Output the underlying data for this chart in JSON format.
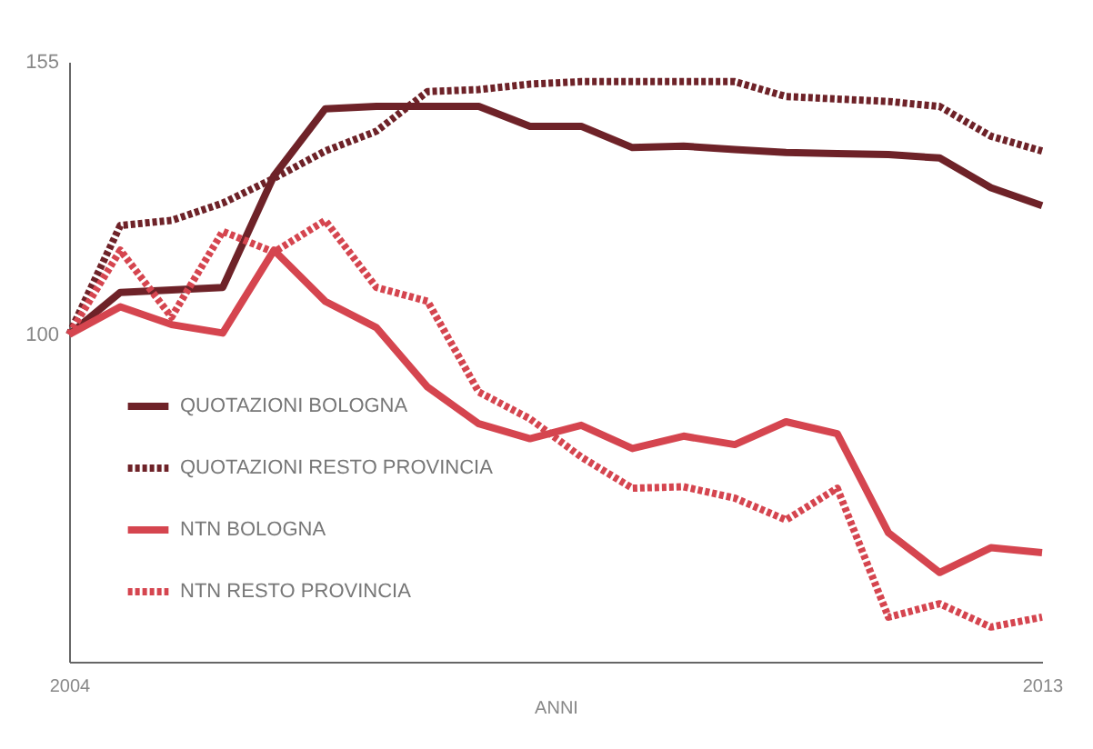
{
  "chart_data": {
    "type": "line",
    "xlabel": "ANNI",
    "categories": [
      "2004",
      null,
      null,
      null,
      null,
      null,
      null,
      null,
      null,
      null,
      null,
      null,
      null,
      null,
      null,
      null,
      null,
      null,
      null,
      "2013"
    ],
    "ylim": [
      34,
      155
    ],
    "yticks": [
      100,
      155
    ],
    "grid": false,
    "legend": "bottom left",
    "series": [
      {
        "name": "QUOTAZIONI BOLOGNA",
        "color": "#6e2228",
        "line_style": "solid",
        "values": [
          100,
          108.5,
          109,
          109.5,
          132,
          145.5,
          146,
          146,
          146,
          142,
          142,
          137.7,
          138,
          137.3,
          136.7,
          136.5,
          136.3,
          135.6,
          129.6,
          126
        ]
      },
      {
        "name": "QUOTAZIONI RESTO PROVINCIA",
        "color": "#6e2228",
        "line_style": "dotted",
        "values": [
          100,
          122,
          123,
          126.5,
          131.5,
          137,
          141,
          149,
          149.4,
          150.5,
          151,
          151,
          151,
          151,
          148,
          147.5,
          147,
          146,
          140,
          137
        ]
      },
      {
        "name": "NTN BOLOGNA",
        "color": "#d5454f",
        "line_style": "solid",
        "values": [
          100,
          105.6,
          102,
          100.3,
          117,
          106.7,
          101.4,
          89.4,
          82,
          79,
          81.7,
          77,
          79.5,
          77.8,
          82.4,
          80,
          60,
          52,
          57,
          56
        ]
      },
      {
        "name": "NTN RESTO PROVINCIA",
        "color": "#d5454f",
        "line_style": "dotted",
        "values": [
          100,
          117,
          103.5,
          120.8,
          116.6,
          123,
          109.5,
          106.7,
          88.4,
          83,
          75.3,
          69,
          69.3,
          67,
          62.6,
          69,
          43,
          45.7,
          41,
          43
        ]
      }
    ]
  }
}
